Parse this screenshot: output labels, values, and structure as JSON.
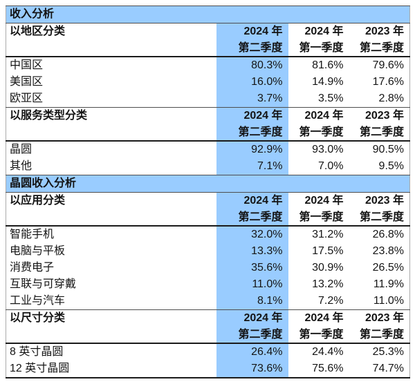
{
  "colors": {
    "highlight": "#99CCFF"
  },
  "sections": [
    {
      "title": "收入分析",
      "groups": [
        {
          "label": "以地区分类",
          "col1": [
            "2024 年",
            "第二季度"
          ],
          "col2": [
            "2024 年",
            "第一季度"
          ],
          "col3": [
            "2023 年",
            "第二季度"
          ],
          "rows": [
            {
              "label": "中国区",
              "v1": "80.3%",
              "v2": "81.6%",
              "v3": "79.6%"
            },
            {
              "label": "美国区",
              "v1": "16.0%",
              "v2": "14.9%",
              "v3": "17.6%"
            },
            {
              "label": "欧亚区",
              "v1": "3.7%",
              "v2": "3.5%",
              "v3": "2.8%"
            }
          ]
        },
        {
          "label": "以服务类型分类",
          "col1": [
            "2024 年",
            "第二季度"
          ],
          "col2": [
            "2024 年",
            "第一季度"
          ],
          "col3": [
            "2023 年",
            "第二季度"
          ],
          "rows": [
            {
              "label": "晶圆",
              "v1": "92.9%",
              "v2": "93.0%",
              "v3": "90.5%"
            },
            {
              "label": "其他",
              "v1": "7.1%",
              "v2": "7.0%",
              "v3": "9.5%"
            }
          ]
        }
      ]
    },
    {
      "title": "晶圆收入分析",
      "groups": [
        {
          "label": "以应用分类",
          "col1": [
            "2024 年",
            "第二季度"
          ],
          "col2": [
            "2024 年",
            "第一季度"
          ],
          "col3": [
            "2023 年",
            "第二季度"
          ],
          "rows": [
            {
              "label": "智能手机",
              "v1": "32.0%",
              "v2": "31.2%",
              "v3": "26.8%"
            },
            {
              "label": "电脑与平板",
              "v1": "13.3%",
              "v2": "17.5%",
              "v3": "23.8%"
            },
            {
              "label": "消费电子",
              "v1": "35.6%",
              "v2": "30.9%",
              "v3": "26.5%"
            },
            {
              "label": "互联与可穿戴",
              "v1": "11.0%",
              "v2": "13.2%",
              "v3": "11.9%"
            },
            {
              "label": "工业与汽车",
              "v1": "8.1%",
              "v2": "7.2%",
              "v3": "11.0%"
            }
          ]
        },
        {
          "label": "以尺寸分类",
          "col1": [
            "2024 年",
            "第二季度"
          ],
          "col2": [
            "2024 年",
            "第一季度"
          ],
          "col3": [
            "2023 年",
            "第二季度"
          ],
          "rows": [
            {
              "label": "8 英寸晶圆",
              "v1": "26.4%",
              "v2": "24.4%",
              "v3": "25.3%"
            },
            {
              "label": "12 英寸晶圆",
              "v1": "73.6%",
              "v2": "75.6%",
              "v3": "74.7%"
            }
          ]
        }
      ]
    }
  ]
}
